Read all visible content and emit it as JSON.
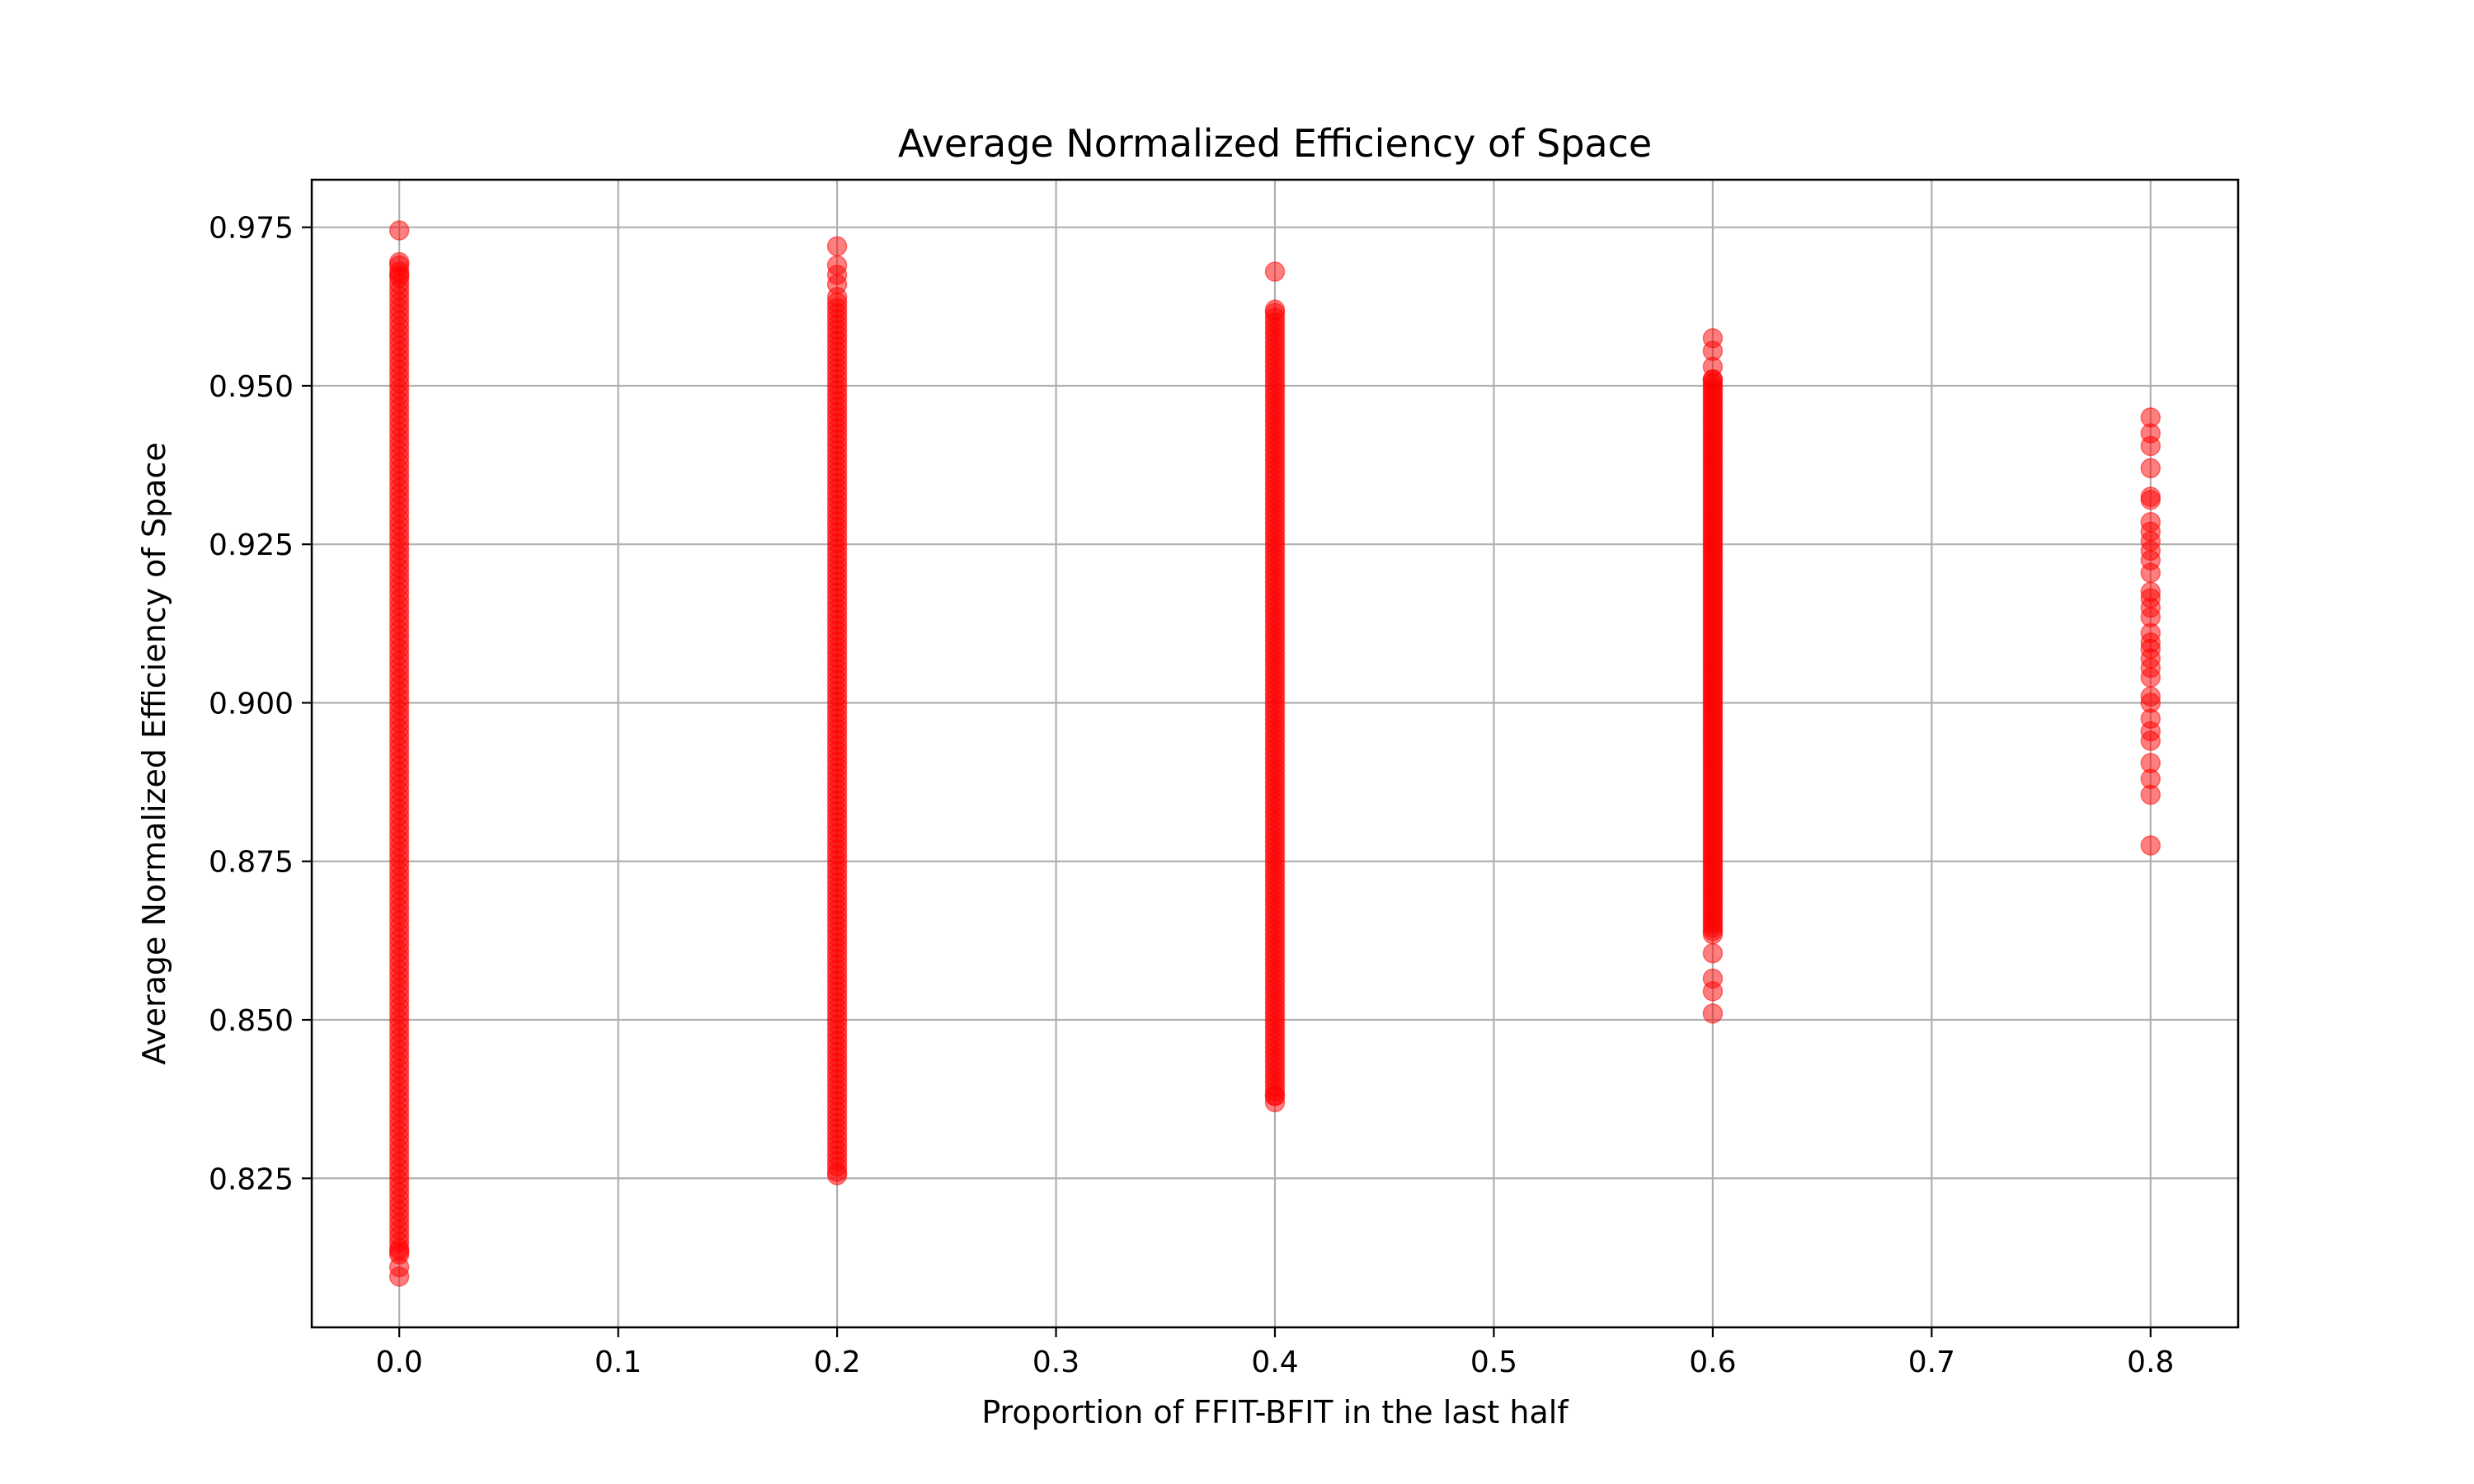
{
  "chart_data": {
    "type": "scatter",
    "title": "Average Normalized Efficiency of Space",
    "xlabel": "Proportion of FFIT-BFIT in the last half",
    "ylabel": "Average Normalized Efficiency of Space",
    "xlim": [
      -0.04,
      0.84
    ],
    "ylim": [
      0.8015,
      0.9825
    ],
    "x_ticks": [
      0.0,
      0.1,
      0.2,
      0.3,
      0.4,
      0.5,
      0.6,
      0.7,
      0.8
    ],
    "x_tick_labels": [
      "0.0",
      "0.1",
      "0.2",
      "0.3",
      "0.4",
      "0.5",
      "0.6",
      "0.7",
      "0.8"
    ],
    "y_ticks": [
      0.825,
      0.85,
      0.875,
      0.9,
      0.925,
      0.95,
      0.975
    ],
    "y_tick_labels": [
      "0.825",
      "0.850",
      "0.875",
      "0.900",
      "0.925",
      "0.950",
      "0.975"
    ],
    "grid": true,
    "marker_color": "#ff0000",
    "marker_alpha": 0.5,
    "series": [
      {
        "x": 0.0,
        "dense_range": [
          0.813,
          0.969
        ],
        "outliers": [
          0.9745,
          0.9695,
          0.9675,
          0.8135,
          0.811,
          0.8095
        ]
      },
      {
        "x": 0.2,
        "dense_range": [
          0.826,
          0.964
        ],
        "outliers": [
          0.972,
          0.969,
          0.9675,
          0.966,
          0.8255
        ]
      },
      {
        "x": 0.4,
        "dense_range": [
          0.838,
          0.9615
        ],
        "outliers": [
          0.968,
          0.962,
          0.838,
          0.837
        ]
      },
      {
        "x": 0.6,
        "dense_range": [
          0.864,
          0.951
        ],
        "outliers": [
          0.9575,
          0.9555,
          0.953,
          0.951,
          0.8635,
          0.8605,
          0.8565,
          0.8545,
          0.851
        ]
      },
      {
        "x": 0.8,
        "points": [
          0.945,
          0.9425,
          0.9405,
          0.937,
          0.9325,
          0.932,
          0.9285,
          0.927,
          0.9255,
          0.924,
          0.9225,
          0.9205,
          0.9175,
          0.9165,
          0.915,
          0.9135,
          0.911,
          0.9095,
          0.9085,
          0.907,
          0.9055,
          0.904,
          0.901,
          0.9,
          0.8975,
          0.8955,
          0.894,
          0.8905,
          0.888,
          0.8855,
          0.8775
        ]
      }
    ]
  }
}
